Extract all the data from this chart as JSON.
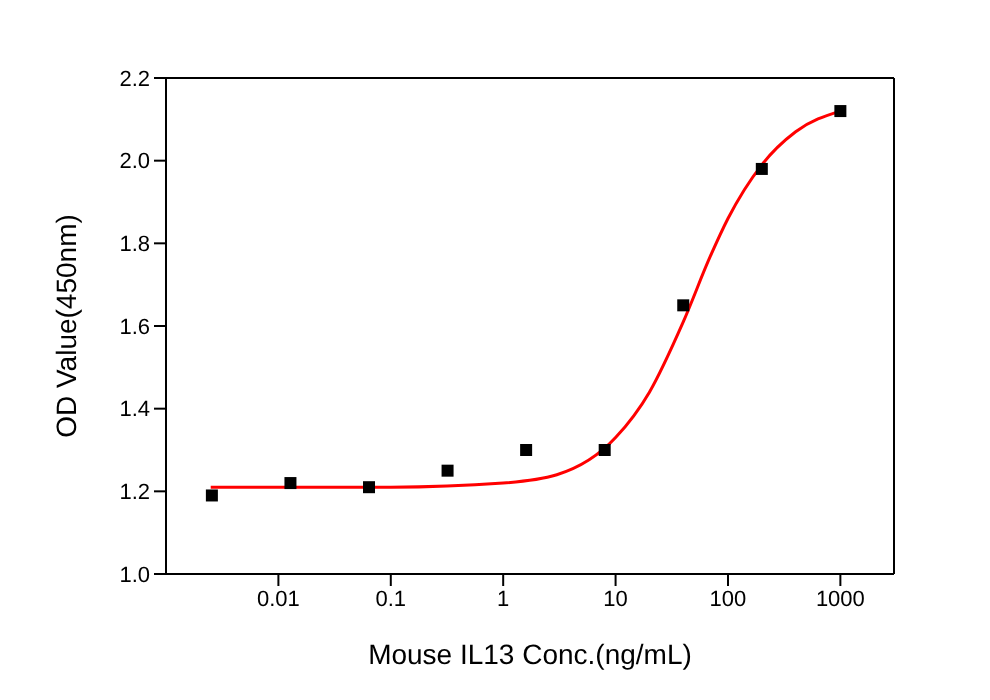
{
  "chart_data": {
    "type": "scatter",
    "xlabel": "Mouse IL13 Conc.(ng/mL)",
    "ylabel": "OD Value(450nm)",
    "log": "x",
    "xlim": [
      0.001,
      3000
    ],
    "xticks": [
      0.01,
      0.1,
      1,
      10,
      100,
      1000
    ],
    "ylim": [
      1.0,
      2.2
    ],
    "yticks": [
      {
        "value": 1.0,
        "label": "1.0"
      },
      {
        "value": 1.2,
        "label": "1.2"
      },
      {
        "value": 1.4,
        "label": "1.4"
      },
      {
        "value": 1.6,
        "label": "1.6"
      },
      {
        "value": 1.8,
        "label": "1.8"
      },
      {
        "value": 2.0,
        "label": "2.0"
      },
      {
        "value": 2.2,
        "label": "2.2"
      }
    ],
    "marker": "square",
    "series": [
      {
        "color": "#000000",
        "x": [
          0.00256,
          0.0128,
          0.064,
          0.32,
          1.6,
          8,
          40,
          200,
          1000
        ],
        "values": [
          1.19,
          1.22,
          1.21,
          1.25,
          1.3,
          1.3,
          1.65,
          1.98,
          2.12
        ]
      },
      {
        "type": "line",
        "color": "#ff0000",
        "marker": "none",
        "x": [
          0.0025,
          0.01,
          0.1,
          1,
          3,
          10,
          20,
          40,
          70,
          100,
          200,
          400,
          1000
        ],
        "values": [
          1.21,
          1.21,
          1.21,
          1.22,
          1.24,
          1.33,
          1.44,
          1.61,
          1.77,
          1.86,
          1.99,
          2.07,
          2.12
        ]
      }
    ]
  }
}
